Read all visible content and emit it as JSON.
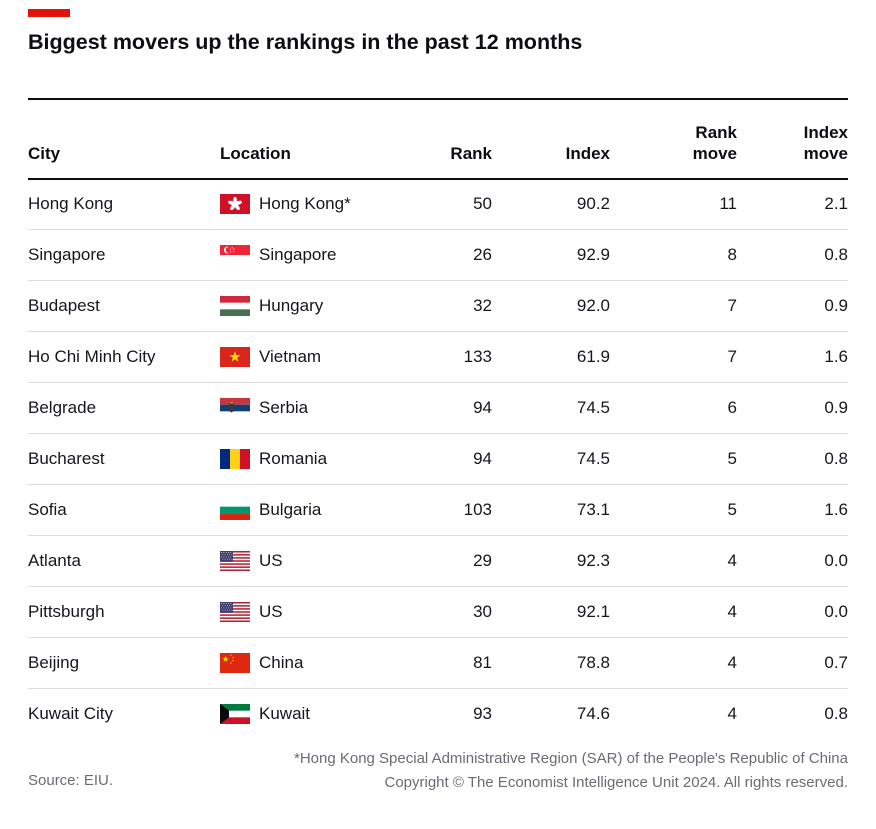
{
  "accent_color": "#E3120B",
  "title": "Biggest movers up the rankings in the past 12 months",
  "chart_data": {
    "type": "table",
    "title": "Biggest movers up the rankings in the past 12 months",
    "columns": [
      "City",
      "Location",
      "Rank",
      "Index",
      "Rank\nmove",
      "Index\nmove"
    ],
    "rows": [
      {
        "city": "Hong Kong",
        "flag": "hong-kong",
        "location": "Hong Kong*",
        "rank": 50,
        "index": 90.2,
        "rank_move": 11,
        "index_move": 2.1
      },
      {
        "city": "Singapore",
        "flag": "singapore",
        "location": "Singapore",
        "rank": 26,
        "index": 92.9,
        "rank_move": 8,
        "index_move": 0.8
      },
      {
        "city": "Budapest",
        "flag": "hungary",
        "location": "Hungary",
        "rank": 32,
        "index": 92.0,
        "rank_move": 7,
        "index_move": 0.9
      },
      {
        "city": "Ho Chi Minh City",
        "flag": "vietnam",
        "location": "Vietnam",
        "rank": 133,
        "index": 61.9,
        "rank_move": 7,
        "index_move": 1.6
      },
      {
        "city": "Belgrade",
        "flag": "serbia",
        "location": "Serbia",
        "rank": 94,
        "index": 74.5,
        "rank_move": 6,
        "index_move": 0.9
      },
      {
        "city": "Bucharest",
        "flag": "romania",
        "location": "Romania",
        "rank": 94,
        "index": 74.5,
        "rank_move": 5,
        "index_move": 0.8
      },
      {
        "city": "Sofia",
        "flag": "bulgaria",
        "location": "Bulgaria",
        "rank": 103,
        "index": 73.1,
        "rank_move": 5,
        "index_move": 1.6
      },
      {
        "city": "Atlanta",
        "flag": "us",
        "location": "US",
        "rank": 29,
        "index": 92.3,
        "rank_move": 4,
        "index_move": 0.0
      },
      {
        "city": "Pittsburgh",
        "flag": "us",
        "location": "US",
        "rank": 30,
        "index": 92.1,
        "rank_move": 4,
        "index_move": 0.0
      },
      {
        "city": "Beijing",
        "flag": "china",
        "location": "China",
        "rank": 81,
        "index": 78.8,
        "rank_move": 4,
        "index_move": 0.7
      },
      {
        "city": "Kuwait City",
        "flag": "kuwait",
        "location": "Kuwait",
        "rank": 93,
        "index": 74.6,
        "rank_move": 4,
        "index_move": 0.8
      }
    ]
  },
  "footer": {
    "footnote": "*Hong Kong Special Administrative Region (SAR) of the People's Republic of China",
    "copyright": "Copyright © The Economist Intelligence Unit 2024. All rights reserved.",
    "source": "Source: EIU."
  }
}
